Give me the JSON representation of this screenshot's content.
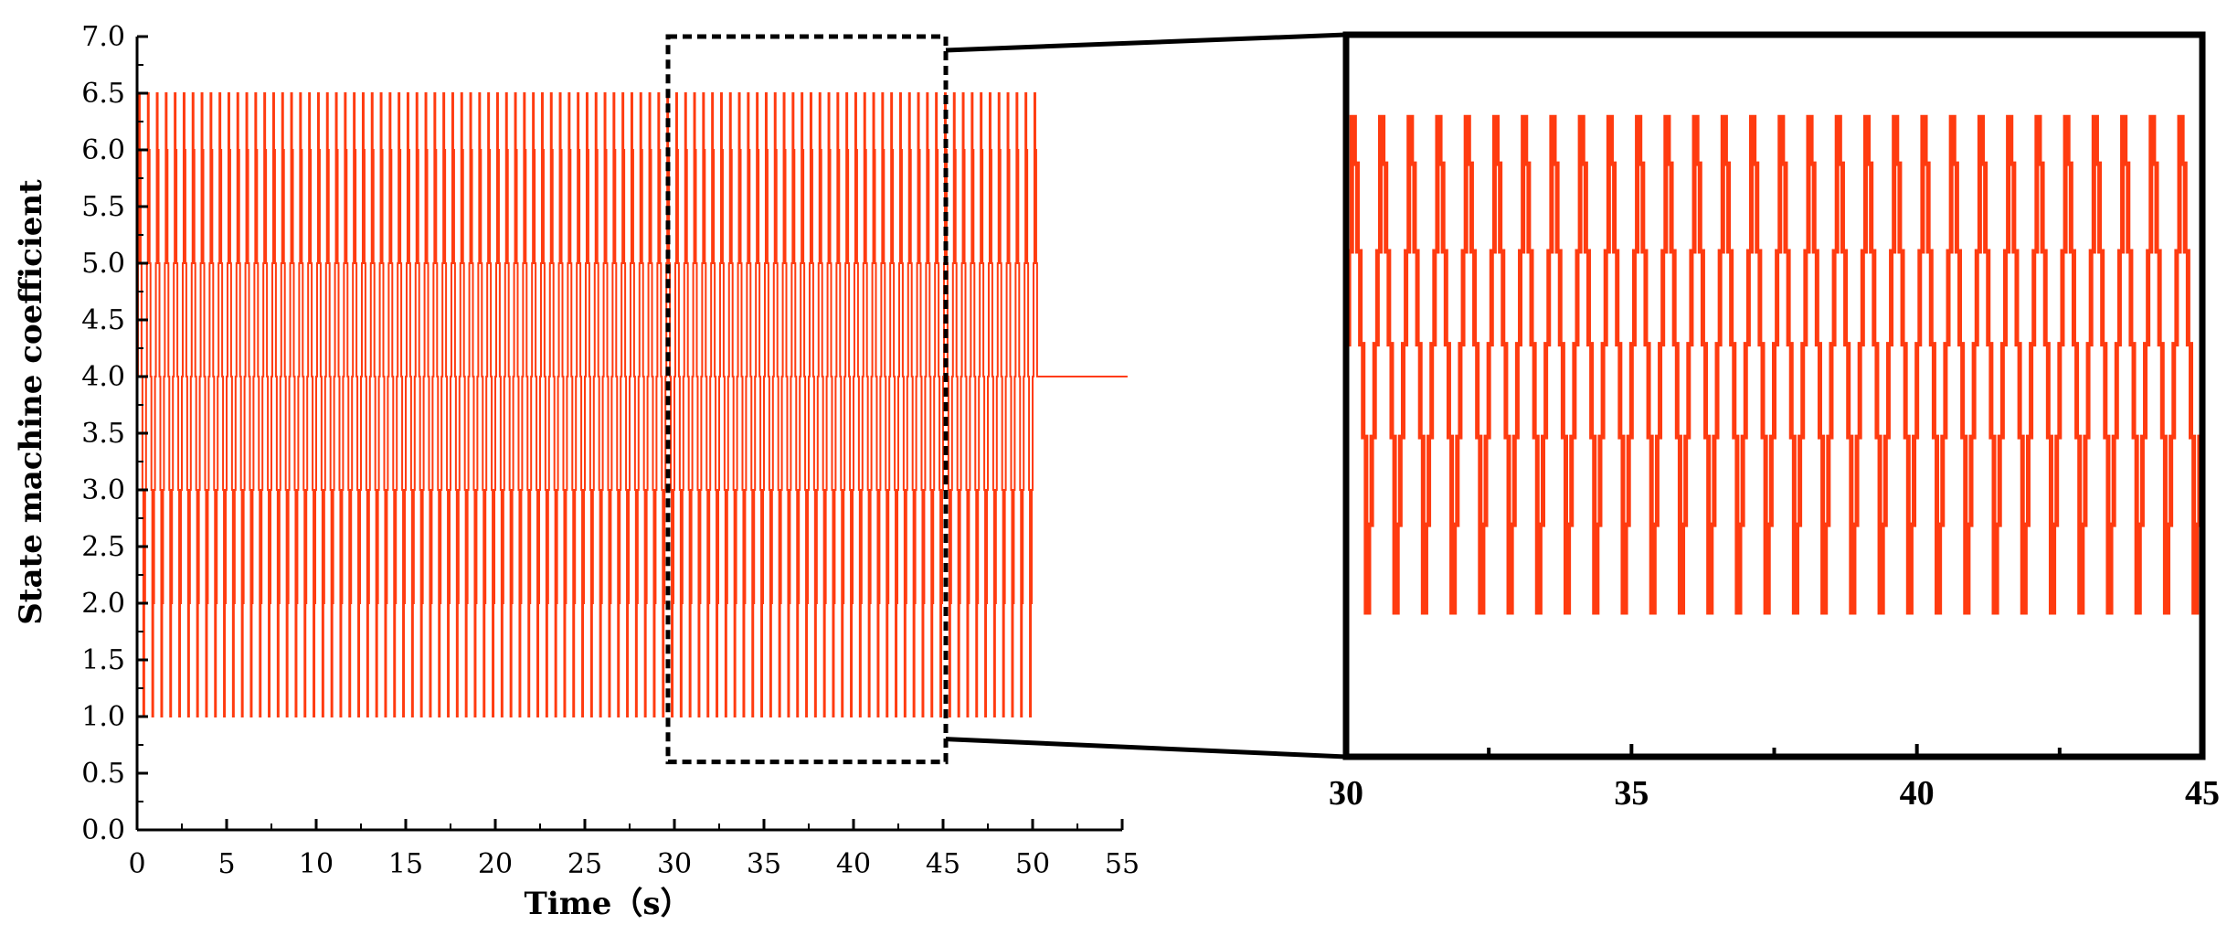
{
  "chart_data": [
    {
      "type": "line",
      "title": "",
      "xlabel": "Time（s）",
      "ylabel": "State machine coefficient",
      "xlim": [
        0,
        55
      ],
      "ylim": [
        0,
        7
      ],
      "xticks": [
        0,
        5,
        10,
        15,
        20,
        25,
        30,
        35,
        40,
        45,
        50,
        55
      ],
      "yticks": [
        "0.0",
        "0.5",
        "1.0",
        "1.5",
        "2.0",
        "2.5",
        "3.0",
        "3.5",
        "4.0",
        "4.5",
        "5.0",
        "5.5",
        "6.0",
        "6.5",
        "7.0"
      ],
      "grid": false,
      "series": [
        {
          "color": "#ff3b10",
          "description_period_s": 0.5,
          "segments": [
            {
              "x_start": 0,
              "x_end": 15,
              "levels": [
                4.0,
                5.0,
                6.5,
                6.0,
                5.0,
                4.0,
                3.0,
                1.0,
                2.0,
                3.0
              ]
            },
            {
              "x_start": 15,
              "x_end": 50.3,
              "levels": [
                4.0,
                5.0,
                6.5,
                6.0,
                5.0,
                4.0,
                3.0,
                1.0,
                2.0,
                3.0
              ]
            },
            {
              "x_start": 50.3,
              "x_end": 55.3,
              "levels": [
                4.0
              ]
            }
          ]
        }
      ],
      "highlight_box": {
        "x": [
          30,
          45
        ],
        "y": [
          0.6,
          7.0
        ]
      }
    },
    {
      "type": "line",
      "title": "",
      "xlabel": "",
      "ylabel": "",
      "xlim": [
        30,
        45
      ],
      "xticks": [
        30,
        35,
        40,
        45
      ],
      "grid": false,
      "series": [
        {
          "color": "#ff3b10",
          "period_s": 0.5,
          "levels": [
            4.0,
            4.9,
            6.2,
            5.75,
            4.9,
            4.0,
            3.1,
            1.4,
            2.25,
            3.1
          ]
        }
      ]
    }
  ]
}
